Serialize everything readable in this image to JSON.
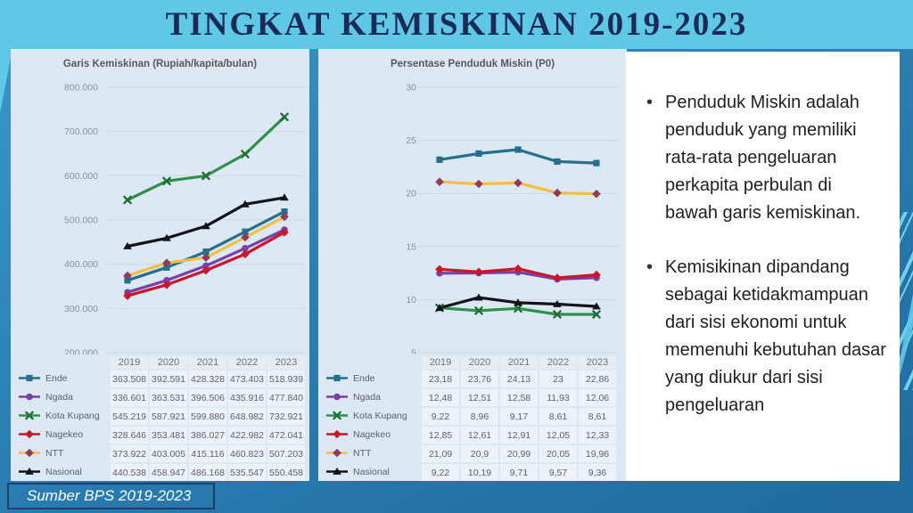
{
  "title": "TINGKAT KEMISKINAN 2019-2023",
  "source": "Sumber BPS 2019-2023",
  "colors": {
    "band": "#5FC8E6",
    "background": "#2B80B4",
    "panel": "#DCE8F3",
    "title_text": "#1B2B57",
    "ende": "#24708F",
    "ngada": "#7741A8",
    "kota_kupang": "#2E9148",
    "nagekeo": "#C9182B",
    "ntt": "#F4BE44",
    "nasional": "#141418"
  },
  "notes": {
    "bullets": [
      "Penduduk Miskin adalah penduduk yang memiliki rata-rata pengeluaran perkapita perbulan di bawah garis kemiskinan.",
      "Kemisikinan dipandang sebagai ketidakmampuan dari sisi ekonomi untuk memenuhi kebutuhan dasar yang diukur dari sisi pengeluaran"
    ]
  },
  "chart_data": [
    {
      "type": "line",
      "title": "Garis Kemiskinan (Rupiah/kapita/bulan)",
      "categories": [
        "2019",
        "2020",
        "2021",
        "2022",
        "2023"
      ],
      "ylim": [
        200000,
        800000
      ],
      "yticks": [
        "800.000",
        "700.000",
        "600.000",
        "500.000",
        "400.000",
        "300.000",
        "200.000"
      ],
      "grid": true,
      "legend_position": "table-left",
      "series": [
        {
          "name": "Ende",
          "color": "#24708F",
          "marker": "square",
          "values": [
            "363.508",
            "392.591",
            "428.328",
            "473.403",
            "518.939"
          ]
        },
        {
          "name": "Ngada",
          "color": "#7741A8",
          "marker": "circle",
          "values": [
            "336.601",
            "363.531",
            "396.506",
            "435.916",
            "477.840"
          ]
        },
        {
          "name": "Kota Kupang",
          "color": "#2E9148",
          "marker": "x",
          "marker_color": "#1E6B33",
          "values": [
            "545.219",
            "587.921",
            "599.880",
            "648.982",
            "732.921"
          ]
        },
        {
          "name": "Nagekeo",
          "color": "#C9182B",
          "marker": "diamond",
          "values": [
            "328.646",
            "353.481",
            "386.027",
            "422.982",
            "472.041"
          ]
        },
        {
          "name": "NTT",
          "color": "#F4BE44",
          "marker": "diamond",
          "marker_color": "#8E3B5C",
          "values": [
            "373.922",
            "403.005",
            "415.116",
            "460.823",
            "507.203"
          ]
        },
        {
          "name": "Nasional",
          "color": "#141418",
          "marker": "triangle",
          "values": [
            "440.538",
            "458.947",
            "486.168",
            "535.547",
            "550.458"
          ]
        }
      ]
    },
    {
      "type": "line",
      "title": "Persentase Penduduk Miskin (P0)",
      "categories": [
        "2019",
        "2020",
        "2021",
        "2022",
        "2023"
      ],
      "ylim": [
        5,
        30
      ],
      "yticks": [
        "30",
        "25",
        "20",
        "15",
        "10",
        "5"
      ],
      "grid": true,
      "legend_position": "table-left",
      "series": [
        {
          "name": "Ende",
          "color": "#24708F",
          "marker": "square",
          "values": [
            "23,18",
            "23,76",
            "24,13",
            "23",
            "22,86"
          ]
        },
        {
          "name": "Ngada",
          "color": "#7741A8",
          "marker": "circle",
          "values": [
            "12,48",
            "12,51",
            "12,58",
            "11,93",
            "12,06"
          ]
        },
        {
          "name": "Kota Kupang",
          "color": "#2E9148",
          "marker": "x",
          "marker_color": "#1E6B33",
          "values": [
            "9,22",
            "8,96",
            "9,17",
            "8,61",
            "8,61"
          ]
        },
        {
          "name": "Nagekeo",
          "color": "#C9182B",
          "marker": "diamond",
          "values": [
            "12,85",
            "12,61",
            "12,91",
            "12,05",
            "12,33"
          ]
        },
        {
          "name": "NTT",
          "color": "#F4BE44",
          "marker": "diamond",
          "marker_color": "#8E3B5C",
          "values": [
            "21,09",
            "20,9",
            "20,99",
            "20,05",
            "19,96"
          ]
        },
        {
          "name": "Nasional",
          "color": "#141418",
          "marker": "triangle",
          "values": [
            "9,22",
            "10,19",
            "9,71",
            "9,57",
            "9,36"
          ]
        }
      ]
    }
  ]
}
